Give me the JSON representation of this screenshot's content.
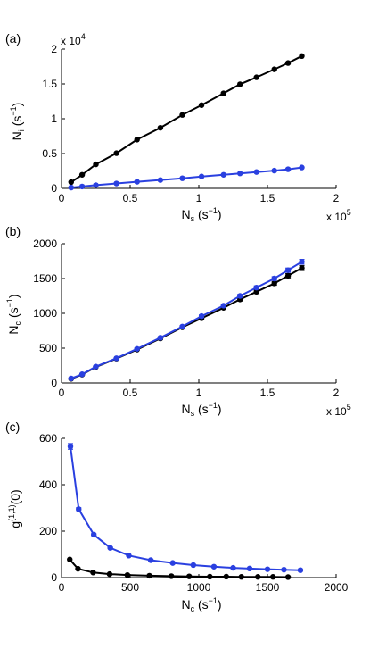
{
  "chart_data": [
    {
      "type": "line",
      "panel_label": "(a)",
      "xlabel_main": "N",
      "xlabel_sub": "s",
      "xlabel_unit": " (s",
      "xlabel_exp": "−1",
      "xlabel_close": ")",
      "ylabel_main": "N",
      "ylabel_sub": "i",
      "ylabel_unit": " (s",
      "ylabel_exp": "−1",
      "ylabel_close": ")",
      "xlim": [
        0,
        200000
      ],
      "ylim": [
        0,
        20000
      ],
      "x_ticks": [
        0,
        50000,
        100000,
        150000,
        200000
      ],
      "x_tick_labels": [
        "0",
        "0.5",
        "1",
        "1.5",
        "2"
      ],
      "y_ticks": [
        0,
        5000,
        10000,
        15000,
        20000
      ],
      "y_tick_labels": [
        "0",
        "0.5",
        "1",
        "1.5",
        "2"
      ],
      "x_multiplier_base": "x 10",
      "x_multiplier_exp": "5",
      "y_multiplier_base": "x 10",
      "y_multiplier_exp": "4",
      "series": [
        {
          "color": "#000000",
          "x": [
            7000,
            15000,
            25000,
            40000,
            55000,
            72000,
            88000,
            102000,
            118000,
            130000,
            142000,
            155000,
            165000,
            175000
          ],
          "y": [
            900,
            1950,
            3450,
            5050,
            7000,
            8700,
            10550,
            11950,
            13650,
            14950,
            15950,
            17100,
            18000,
            19000
          ]
        },
        {
          "color": "#2a40e0",
          "x": [
            7000,
            15000,
            25000,
            40000,
            55000,
            72000,
            88000,
            102000,
            118000,
            130000,
            142000,
            155000,
            165000,
            175000
          ],
          "y": [
            120,
            270,
            460,
            700,
            950,
            1200,
            1450,
            1700,
            1950,
            2150,
            2350,
            2550,
            2750,
            3000
          ]
        }
      ]
    },
    {
      "type": "line",
      "panel_label": "(b)",
      "xlabel_main": "N",
      "xlabel_sub": "s",
      "xlabel_unit": " (s",
      "xlabel_exp": "−1",
      "xlabel_close": ")",
      "ylabel_main": "N",
      "ylabel_sub": "c",
      "ylabel_unit": " (s",
      "ylabel_exp": "−1",
      "ylabel_close": ")",
      "xlim": [
        0,
        200000
      ],
      "ylim": [
        0,
        2000
      ],
      "x_ticks": [
        0,
        50000,
        100000,
        150000,
        200000
      ],
      "x_tick_labels": [
        "0",
        "0.5",
        "1",
        "1.5",
        "2"
      ],
      "y_ticks": [
        0,
        500,
        1000,
        1500,
        2000
      ],
      "y_tick_labels": [
        "0",
        "500",
        "1000",
        "1500",
        "2000"
      ],
      "x_multiplier_base": "x 10",
      "x_multiplier_exp": "5",
      "series": [
        {
          "color": "#000000",
          "x": [
            7000,
            15000,
            25000,
            40000,
            55000,
            72000,
            88000,
            102000,
            118000,
            130000,
            142000,
            155000,
            165000,
            175000
          ],
          "y": [
            60,
            120,
            230,
            350,
            480,
            640,
            800,
            930,
            1080,
            1200,
            1310,
            1430,
            1540,
            1650
          ],
          "err": [
            6,
            6,
            8,
            8,
            10,
            12,
            14,
            18,
            20,
            22,
            24,
            26,
            30,
            34
          ]
        },
        {
          "color": "#2a40e0",
          "x": [
            7000,
            15000,
            25000,
            40000,
            55000,
            72000,
            88000,
            102000,
            118000,
            130000,
            142000,
            155000,
            165000,
            175000
          ],
          "y": [
            65,
            125,
            235,
            355,
            490,
            650,
            810,
            960,
            1110,
            1250,
            1370,
            1500,
            1620,
            1740
          ],
          "err": [
            6,
            6,
            8,
            8,
            10,
            12,
            14,
            18,
            20,
            22,
            24,
            26,
            30,
            34
          ]
        }
      ]
    },
    {
      "type": "line",
      "panel_label": "(c)",
      "xlabel_main": "N",
      "xlabel_sub": "c",
      "xlabel_unit": " (s",
      "xlabel_exp": "−1",
      "xlabel_close": ")",
      "ylabel_main": "g",
      "ylabel_exp": "(1,1)",
      "ylabel_tail": "(0)",
      "xlim": [
        0,
        2000
      ],
      "ylim": [
        0,
        600
      ],
      "x_ticks": [
        0,
        500,
        1000,
        1500,
        2000
      ],
      "x_tick_labels": [
        "0",
        "500",
        "1000",
        "1500",
        "2000"
      ],
      "y_ticks": [
        0,
        200,
        400,
        600
      ],
      "y_tick_labels": [
        "0",
        "200",
        "400",
        "600"
      ],
      "series": [
        {
          "color": "#000000",
          "x": [
            60,
            120,
            230,
            350,
            480,
            640,
            800,
            930,
            1080,
            1200,
            1310,
            1430,
            1540,
            1650
          ],
          "y": [
            78,
            38,
            22,
            15,
            11,
            8,
            6,
            5,
            4,
            4,
            3,
            3,
            3,
            2
          ]
        },
        {
          "color": "#2a40e0",
          "x": [
            65,
            125,
            235,
            355,
            490,
            650,
            810,
            960,
            1110,
            1250,
            1370,
            1500,
            1620,
            1740
          ],
          "y": [
            565,
            295,
            185,
            128,
            95,
            75,
            63,
            54,
            47,
            42,
            39,
            36,
            34,
            32
          ],
          "err": [
            12,
            6,
            4,
            3,
            2,
            2,
            2,
            2,
            2,
            2,
            2,
            2,
            2,
            2
          ]
        }
      ]
    }
  ]
}
